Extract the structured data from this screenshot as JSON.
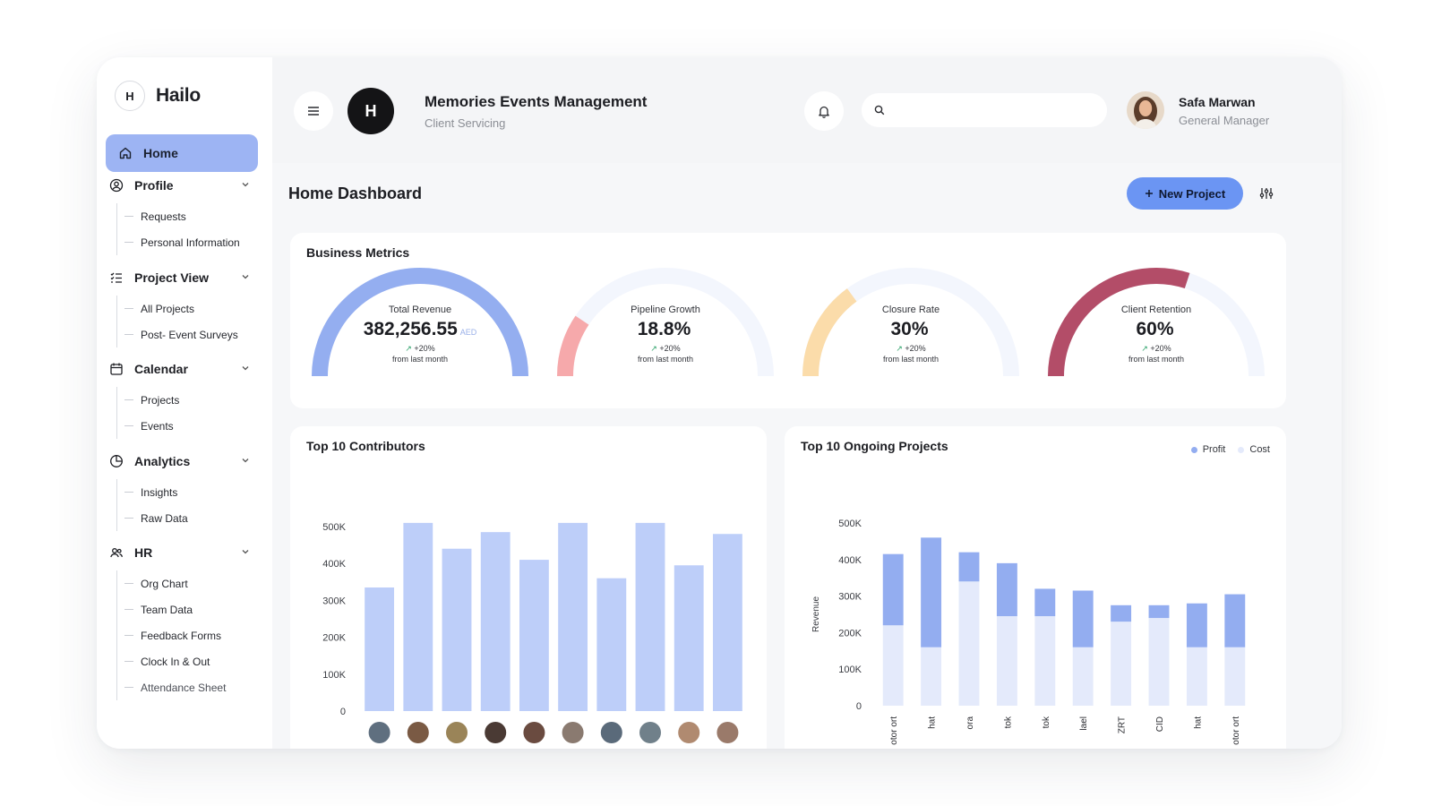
{
  "brand": {
    "mark": "H",
    "name": "Hailo"
  },
  "nav": {
    "home": "Home",
    "sections": [
      {
        "label": "Profile",
        "icon": "user-circle-icon",
        "items": [
          "Requests",
          "Personal Information"
        ]
      },
      {
        "label": "Project View",
        "icon": "list-check-icon",
        "items": [
          "All Projects",
          "Post- Event Surveys"
        ]
      },
      {
        "label": "Calendar",
        "icon": "calendar-icon",
        "items": [
          "Projects",
          "Events"
        ]
      },
      {
        "label": "Analytics",
        "icon": "pie-chart-icon",
        "items": [
          "Insights",
          "Raw Data"
        ]
      },
      {
        "label": "HR",
        "icon": "users-icon",
        "items": [
          "Org Chart",
          "Team Data",
          "Feedback Forms",
          "Clock In & Out",
          "Attendance Sheet"
        ]
      }
    ]
  },
  "header": {
    "org_initial": "H",
    "org_title": "Memories Events Management",
    "org_subtitle": "Client Servicing",
    "search_placeholder": "",
    "user_name": "Safa Marwan",
    "user_role": "General Manager"
  },
  "page": {
    "title": "Home Dashboard",
    "new_project": "New Project",
    "new_project_icon": "plus-icon"
  },
  "metrics": {
    "title": "Business Metrics",
    "items": [
      {
        "label": "Total Revenue",
        "value": "382,256.55",
        "unit": "AED",
        "change": "+20%",
        "note": "from last month",
        "fill": 1.0,
        "color": "#94aef0"
      },
      {
        "label": "Pipeline Growth",
        "value": "18.8%",
        "unit": "",
        "change": "+20%",
        "note": "from last month",
        "fill": 0.188,
        "color": "#f6a9ab"
      },
      {
        "label": "Closure Rate",
        "value": "30%",
        "unit": "",
        "change": "+20%",
        "note": "from last month",
        "fill": 0.3,
        "color": "#fbdcaa"
      },
      {
        "label": "Client Retention",
        "value": "60%",
        "unit": "",
        "change": "+20%",
        "note": "from last month",
        "fill": 0.6,
        "color": "#b34d68"
      }
    ]
  },
  "contributors": {
    "title": "Top 10 Contributors",
    "chart_data": {
      "type": "bar",
      "values": [
        335000,
        510000,
        440000,
        485000,
        410000,
        510000,
        360000,
        510000,
        395000,
        480000
      ],
      "ylim": [
        0,
        500000
      ],
      "yticks": [
        "0",
        "100K",
        "200K",
        "300K",
        "400K",
        "500K"
      ],
      "bar_color": "#bdcef9"
    }
  },
  "projects": {
    "title": "Top 10 Ongoing Projects",
    "legend": [
      {
        "name": "Profit",
        "color": "#93adf0"
      },
      {
        "name": "Cost",
        "color": "#e4eafb"
      }
    ],
    "chart_data": {
      "type": "bar",
      "stacked": true,
      "ylabel": "Revenue",
      "ylim": [
        0,
        500000
      ],
      "yticks": [
        "0",
        "100K",
        "200K",
        "300K",
        "400K",
        "500K"
      ],
      "categories": [
        "otor ort",
        "hat",
        "ora",
        "tok",
        "tok",
        "lael",
        "ZRT",
        "CID",
        "hat",
        "otor ort"
      ],
      "series": [
        {
          "name": "Cost",
          "values": [
            220000,
            160000,
            340000,
            245000,
            245000,
            160000,
            230000,
            240000,
            160000,
            160000
          ]
        },
        {
          "name": "Profit",
          "values": [
            195000,
            300000,
            80000,
            145000,
            75000,
            155000,
            45000,
            35000,
            120000,
            145000
          ]
        }
      ]
    }
  }
}
